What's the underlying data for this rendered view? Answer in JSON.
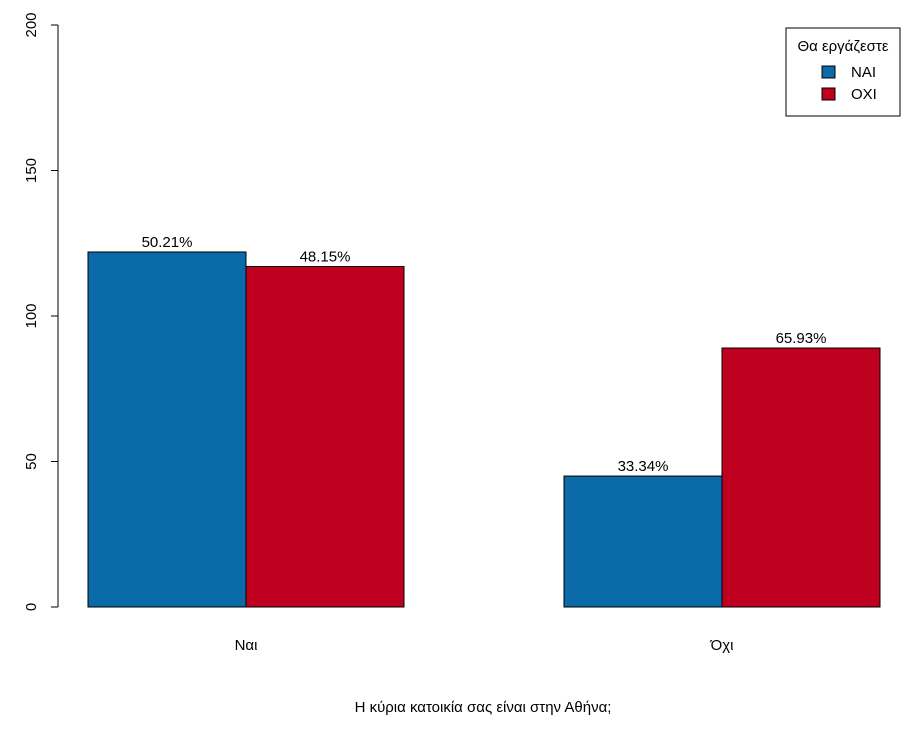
{
  "chart_data": {
    "type": "bar",
    "xlabel": "Η κύρια κατοικία σας είναι στην Αθήνα;",
    "ylabel": "",
    "ylim": [
      0,
      200
    ],
    "yticks": [
      "0",
      "50",
      "100",
      "150",
      "200"
    ],
    "categories": [
      "Ναι",
      "Όχι"
    ],
    "legend": {
      "title": "Θα εργάζεστε",
      "placement": "top-right"
    },
    "series": [
      {
        "name": "ΝΑΙ",
        "color": "#0b6aa8",
        "values": [
          122,
          45
        ],
        "labels": [
          "50.21%",
          "33.34%"
        ]
      },
      {
        "name": "ΟΧΙ",
        "color": "#c0001f",
        "values": [
          117,
          89
        ],
        "labels": [
          "48.15%",
          "65.93%"
        ]
      }
    ],
    "grid": false
  }
}
